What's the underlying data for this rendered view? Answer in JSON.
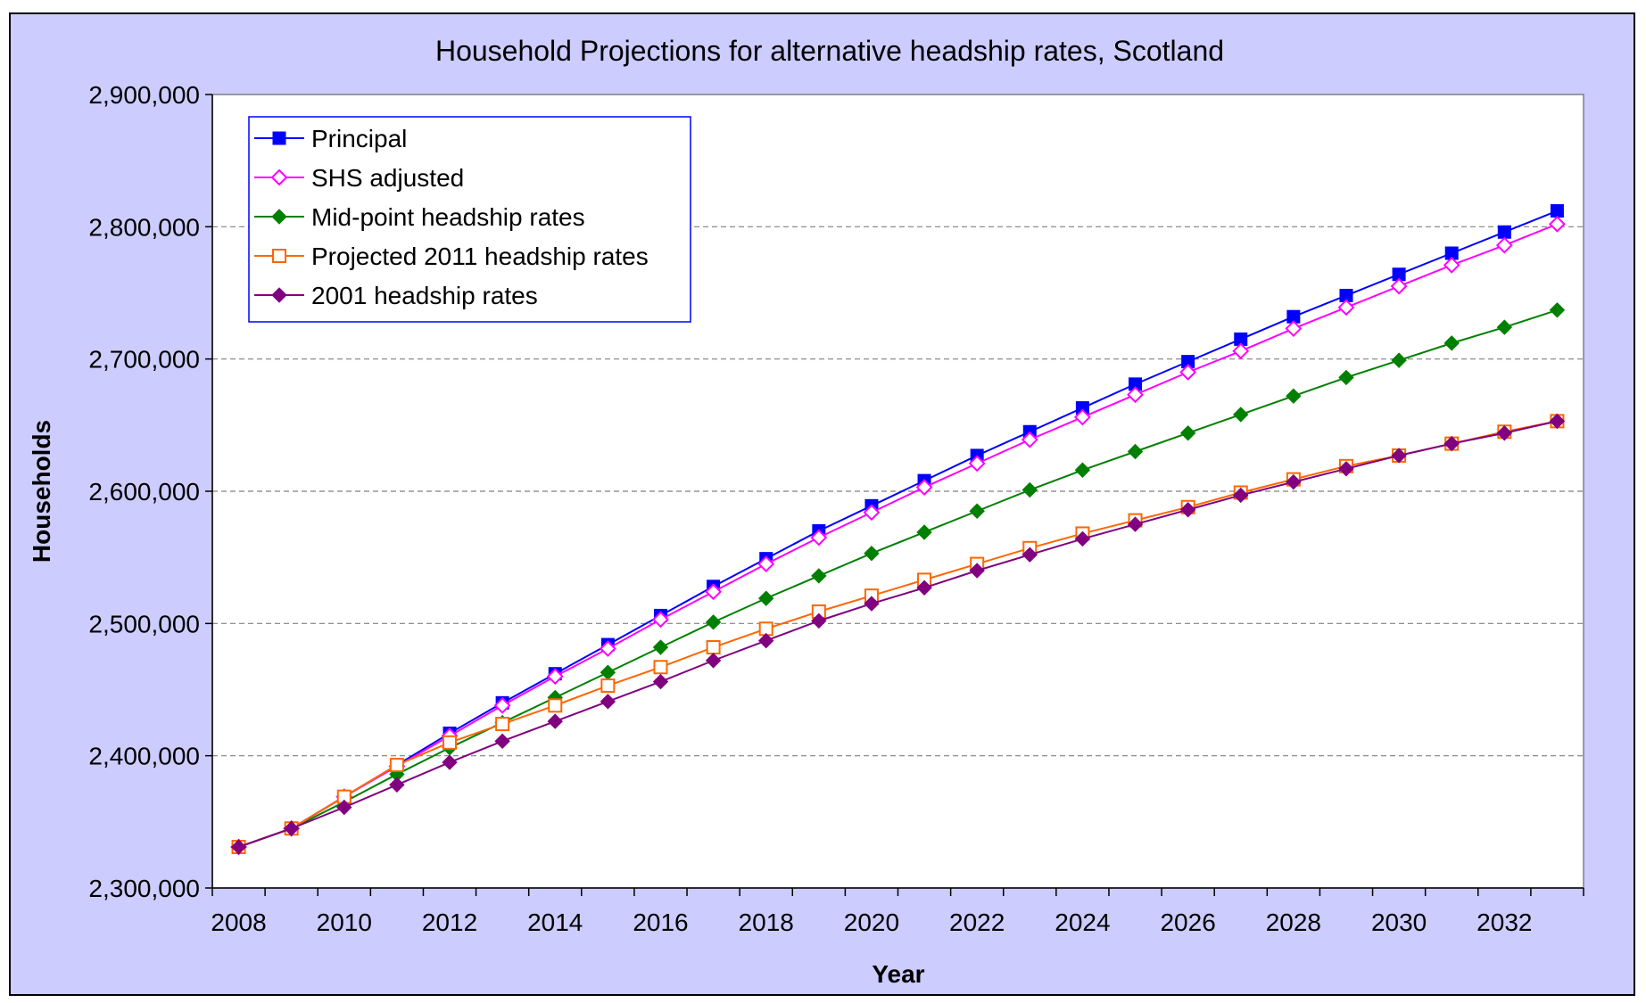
{
  "chart_data": {
    "type": "line",
    "title": "Household Projections for alternative headship rates, Scotland",
    "xlabel": "Year",
    "ylabel": "Households",
    "x": [
      2008,
      2009,
      2010,
      2011,
      2012,
      2013,
      2014,
      2015,
      2016,
      2017,
      2018,
      2019,
      2020,
      2021,
      2022,
      2023,
      2024,
      2025,
      2026,
      2027,
      2028,
      2029,
      2030,
      2031,
      2032,
      2033
    ],
    "xticks": [
      "2008",
      "2010",
      "2012",
      "2014",
      "2016",
      "2018",
      "2020",
      "2022",
      "2024",
      "2026",
      "2028",
      "2030",
      "2032"
    ],
    "ylim": [
      2300000,
      2900000
    ],
    "yticks": [
      "2,300,000",
      "2,400,000",
      "2,500,000",
      "2,600,000",
      "2,700,000",
      "2,800,000",
      "2,900,000"
    ],
    "grid": "horizontal dashed",
    "legend_position": "top-left",
    "series": [
      {
        "name": "Principal",
        "color": "#0000ff",
        "marker": "square-filled",
        "values": [
          2331000,
          2345000,
          2369000,
          2393000,
          2417000,
          2440000,
          2462000,
          2484000,
          2506000,
          2528000,
          2549000,
          2570000,
          2589000,
          2608000,
          2627000,
          2645000,
          2663000,
          2681000,
          2698000,
          2715000,
          2732000,
          2748000,
          2764000,
          2780000,
          2796000,
          2812000
        ]
      },
      {
        "name": "SHS adjusted",
        "color": "#ff00ff",
        "marker": "diamond-open",
        "values": [
          2331000,
          2345000,
          2369000,
          2392000,
          2415000,
          2438000,
          2460000,
          2481000,
          2503000,
          2524000,
          2545000,
          2565000,
          2584000,
          2603000,
          2621000,
          2639000,
          2656000,
          2673000,
          2690000,
          2706000,
          2723000,
          2739000,
          2755000,
          2771000,
          2786000,
          2802000
        ]
      },
      {
        "name": "Mid-point headship rates",
        "color": "#008000",
        "marker": "diamond-filled",
        "values": [
          2331000,
          2345000,
          2365000,
          2386000,
          2406000,
          2425000,
          2444000,
          2463000,
          2482000,
          2501000,
          2519000,
          2536000,
          2553000,
          2569000,
          2585000,
          2601000,
          2616000,
          2630000,
          2644000,
          2658000,
          2672000,
          2686000,
          2699000,
          2712000,
          2724000,
          2737000
        ]
      },
      {
        "name": "Projected 2011 headship rates",
        "color": "#ff6600",
        "marker": "square-open",
        "values": [
          2331000,
          2345000,
          2369000,
          2393000,
          2410000,
          2424000,
          2438000,
          2453000,
          2467000,
          2482000,
          2496000,
          2509000,
          2521000,
          2533000,
          2545000,
          2557000,
          2568000,
          2578000,
          2588000,
          2599000,
          2609000,
          2619000,
          2627000,
          2636000,
          2645000,
          2653000
        ]
      },
      {
        "name": "2001 headship rates",
        "color": "#800080",
        "marker": "diamond-filled",
        "values": [
          2331000,
          2345000,
          2361000,
          2378000,
          2395000,
          2411000,
          2426000,
          2441000,
          2456000,
          2472000,
          2487000,
          2502000,
          2515000,
          2527000,
          2540000,
          2552000,
          2564000,
          2575000,
          2586000,
          2597000,
          2607000,
          2617000,
          2627000,
          2636000,
          2644000,
          2653000
        ]
      }
    ]
  }
}
